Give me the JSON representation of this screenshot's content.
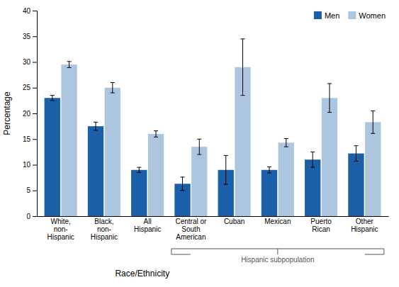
{
  "chart_data": {
    "type": "bar",
    "categories": [
      "White,\nnon-\nHispanic",
      "Black,\nnon-\nHispanic",
      "All\nHispanic",
      "Central or\nSouth\nAmerican",
      "Cuban",
      "Mexican",
      "Puerto\nRican",
      "Other\nHispanic"
    ],
    "series": [
      {
        "name": "Men",
        "color": "#1b5fa8",
        "values": [
          23.0,
          17.5,
          9.0,
          6.3,
          9.0,
          9.0,
          11.0,
          12.2
        ],
        "errors_low": [
          0.5,
          0.8,
          0.5,
          1.3,
          2.8,
          0.6,
          1.5,
          1.5
        ],
        "errors_high": [
          0.5,
          0.8,
          0.5,
          1.3,
          2.8,
          0.6,
          1.5,
          1.5
        ]
      },
      {
        "name": "Women",
        "color": "#adc6e0",
        "values": [
          29.5,
          25.0,
          16.0,
          13.5,
          29.0,
          14.3,
          23.0,
          18.3
        ],
        "errors_low": [
          0.6,
          1.0,
          0.6,
          1.5,
          5.5,
          0.8,
          2.8,
          2.2
        ],
        "errors_high": [
          0.6,
          1.0,
          0.6,
          1.5,
          5.5,
          0.8,
          2.8,
          2.2
        ]
      }
    ],
    "xlabel": "Race/Ethnicity",
    "ylabel": "Percentage",
    "ylim": [
      0,
      40
    ],
    "yticks": [
      0,
      5,
      10,
      15,
      20,
      25,
      30,
      35,
      40
    ],
    "grid": false,
    "legend": "upper right",
    "annotations": [
      {
        "text": "Hispanic subpopulation",
        "from": "Central or\nSouth\nAmerican",
        "to": "Other\nHispanic"
      }
    ]
  }
}
